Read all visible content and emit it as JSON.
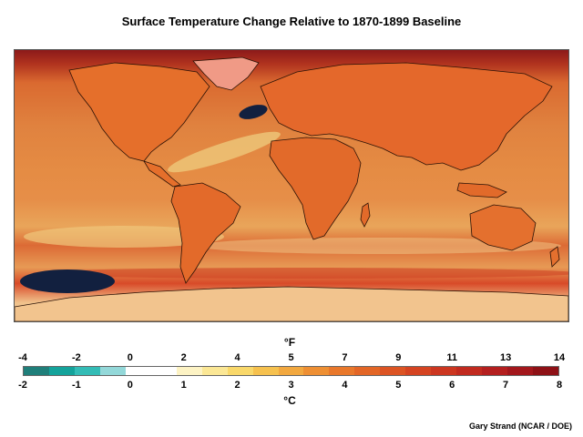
{
  "title": "Surface Temperature Change Relative to 1870-1899 Baseline",
  "legend": {
    "fahrenheit_unit": "°F",
    "celsius_unit": "°C",
    "fahrenheit_ticks": [
      "-4",
      "-2",
      "0",
      "2",
      "4",
      "5",
      "7",
      "9",
      "11",
      "13",
      "14"
    ],
    "celsius_ticks": [
      "-2",
      "-1",
      "0",
      "1",
      "2",
      "3",
      "4",
      "5",
      "6",
      "7",
      "8"
    ],
    "colors": [
      "#1f7f7a",
      "#14a39b",
      "#33bcb6",
      "#93d8d9",
      "#ffffff",
      "#ffffff",
      "#fdf3c4",
      "#fbe795",
      "#f9d86a",
      "#f6c14e",
      "#f2a83f",
      "#ee8f33",
      "#e9782b",
      "#e36626",
      "#dc5423",
      "#d54421",
      "#cc3620",
      "#c12a1f",
      "#b41f1f",
      "#a3171c",
      "#8e1116"
    ]
  },
  "credit": "Gary Strand (NCAR / DOE)",
  "map": {
    "colors": {
      "ocean_warm": "#e0823f",
      "polar_north": "#8c1a1a",
      "land": "#e46a2a",
      "cool_band": "#eec87a",
      "cold_anomaly": "#12203f",
      "antarctica": "#f1c08a",
      "coastline": "#2b1206"
    }
  }
}
